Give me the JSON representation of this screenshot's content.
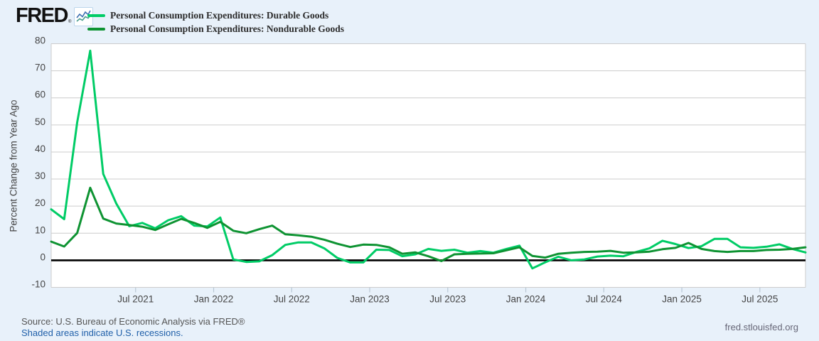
{
  "header": {
    "logo_text": "FRED",
    "logo_reg": "®"
  },
  "chart_data": {
    "type": "line",
    "title": "",
    "xlabel": "",
    "ylabel": "Percent Change from Year Ago",
    "ylim": [
      -10,
      80
    ],
    "y_ticks": [
      80,
      70,
      60,
      50,
      40,
      30,
      20,
      10,
      0,
      -10
    ],
    "grid": "horizontal",
    "zero_line": true,
    "legend_position": "top-left",
    "x_tick_labels": [
      "Jul 2021",
      "Jan 2022",
      "Jul 2022",
      "Jan 2023",
      "Jul 2023",
      "Jan 2024",
      "Jul 2024",
      "Jan 2025",
      "Jul 2025"
    ],
    "x_tick_indices": [
      6,
      12,
      18,
      24,
      30,
      36,
      42,
      48,
      54
    ],
    "x": [
      "Jan 2021",
      "Feb 2021",
      "Mar 2021",
      "Apr 2021",
      "May 2021",
      "Jun 2021",
      "Jul 2021",
      "Aug 2021",
      "Sep 2021",
      "Oct 2021",
      "Nov 2021",
      "Dec 2021",
      "Jan 2022",
      "Feb 2022",
      "Mar 2022",
      "Apr 2022",
      "May 2022",
      "Jun 2022",
      "Jul 2022",
      "Aug 2022",
      "Sep 2022",
      "Oct 2022",
      "Nov 2022",
      "Dec 2022",
      "Jan 2023",
      "Feb 2023",
      "Mar 2023",
      "Apr 2023",
      "May 2023",
      "Jun 2023",
      "Jul 2023",
      "Aug 2023",
      "Sep 2023",
      "Oct 2023",
      "Nov 2023",
      "Dec 2023",
      "Jan 2024",
      "Feb 2024",
      "Mar 2024",
      "Apr 2024",
      "May 2024",
      "Jun 2024",
      "Jul 2024",
      "Aug 2024",
      "Sep 2024",
      "Oct 2024",
      "Nov 2024",
      "Dec 2024",
      "Jan 2025",
      "Feb 2025",
      "Mar 2025",
      "Apr 2025",
      "May 2025",
      "Jun 2025",
      "Jul 2025",
      "Aug 2025",
      "Sep 2025",
      "Oct 2025",
      "Nov 2025"
    ],
    "series": [
      {
        "name": "Personal Consumption Expenditures: Durable Goods",
        "color": "#00CC66",
        "values": [
          18.8,
          15.2,
          51.0,
          77.4,
          31.9,
          21.0,
          12.6,
          13.8,
          11.8,
          14.8,
          16.3,
          12.8,
          12.5,
          15.8,
          0.3,
          -0.6,
          -0.4,
          1.9,
          5.7,
          6.6,
          6.6,
          4.4,
          0.9,
          -0.8,
          -0.8,
          3.9,
          3.8,
          1.5,
          2.2,
          4.2,
          3.5,
          3.9,
          2.8,
          3.4,
          2.8,
          4.2,
          5.4,
          -3.0,
          -0.7,
          1.3,
          0.0,
          0.3,
          1.4,
          1.7,
          1.5,
          3.1,
          4.4,
          7.2,
          6.0,
          4.5,
          5.2,
          7.9,
          7.9,
          4.8,
          4.6,
          5.0,
          5.9,
          4.2,
          2.9
        ]
      },
      {
        "name": "Personal Consumption Expenditures: Nondurable Goods",
        "color": "#0E9332",
        "values": [
          6.9,
          5.1,
          10.1,
          26.8,
          15.4,
          13.6,
          13.0,
          12.4,
          11.2,
          13.3,
          15.3,
          13.8,
          12.0,
          14.2,
          10.9,
          10.0,
          11.5,
          12.8,
          9.6,
          9.2,
          8.7,
          7.6,
          6.1,
          4.9,
          5.8,
          5.7,
          4.8,
          2.4,
          2.9,
          1.5,
          -0.3,
          2.2,
          2.4,
          2.5,
          2.6,
          3.7,
          4.8,
          1.6,
          1.0,
          2.4,
          2.8,
          3.1,
          3.2,
          3.5,
          2.8,
          2.9,
          3.2,
          4.1,
          4.6,
          6.4,
          4.2,
          3.4,
          3.1,
          3.4,
          3.4,
          3.8,
          3.9,
          4.2,
          4.8
        ]
      }
    ]
  },
  "footer": {
    "source": "Source: U.S. Bureau of Economic Analysis via FRED®",
    "note": "Shaded areas indicate U.S. recessions.",
    "site": "fred.stlouisfed.org"
  },
  "colors": {
    "page_background": "#e8f1fa",
    "plot_background": "#ffffff",
    "gridline": "#cccccc",
    "zero_line": "#000000",
    "axis_text": "#444444",
    "tick_mark": "#b9c7d4"
  }
}
